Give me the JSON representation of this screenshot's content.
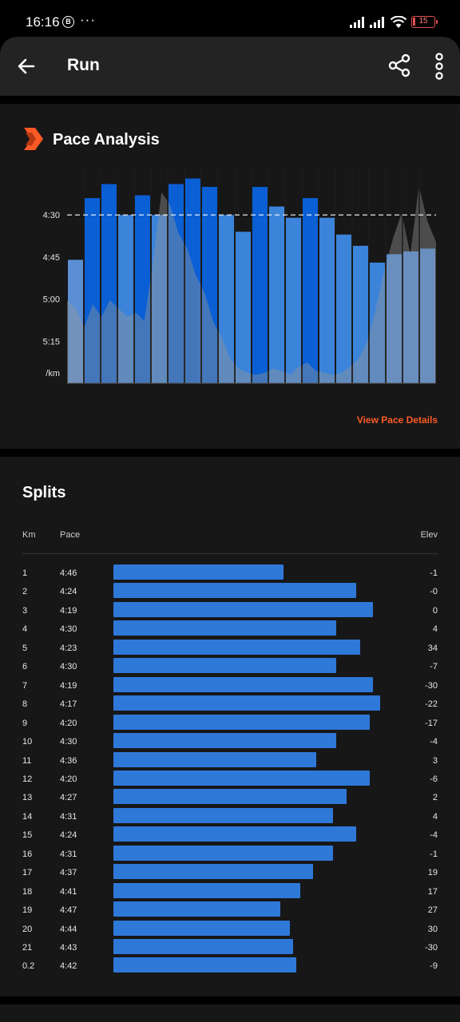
{
  "status": {
    "time": "16:16",
    "badge": "B",
    "dots": "···",
    "battery": "15"
  },
  "appbar": {
    "title": "Run",
    "back_icon": "arrow-left-icon",
    "share_icon": "share-icon",
    "more_icon": "more-vertical-icon"
  },
  "pace": {
    "title": "Pace Analysis",
    "icon": "chevron-badge-icon",
    "link": "View Pace Details",
    "chart_data": {
      "type": "bar",
      "ylabel": "/km",
      "y_ticks": [
        "4:30",
        "4:45",
        "5:00",
        "5:15"
      ],
      "y_tick_seconds": [
        270,
        285,
        300,
        315
      ],
      "ylim_seconds": [
        330,
        256
      ],
      "reference_line_seconds": 270,
      "categories": [
        "1",
        "2",
        "3",
        "4",
        "5",
        "6",
        "7",
        "8",
        "9",
        "10",
        "11",
        "12",
        "13",
        "14",
        "15",
        "16",
        "17",
        "18",
        "19",
        "20",
        "21",
        "0.2"
      ],
      "values_seconds": [
        286,
        264,
        259,
        270,
        263,
        270,
        259,
        257,
        260,
        270,
        276,
        260,
        267,
        271,
        264,
        271,
        277,
        281,
        287,
        284,
        283,
        282
      ],
      "bar_colors": [
        "#5a8fd6",
        "#0a5fd4",
        "#0a5fd4",
        "#3b84da",
        "#0a5fd4",
        "#3b84da",
        "#0a5fd4",
        "#0a5fd4",
        "#0a5fd4",
        "#3b84da",
        "#3b84da",
        "#0a5fd4",
        "#3b84da",
        "#3b84da",
        "#0a5fd4",
        "#3b84da",
        "#3b84da",
        "#3b84da",
        "#3b84da",
        "#4a8adb",
        "#4a8adb",
        "#4a8adb"
      ],
      "elevation_overlay": [
        0.4,
        0.36,
        0.27,
        0.38,
        0.32,
        0.4,
        0.36,
        0.32,
        0.34,
        0.3,
        0.58,
        0.92,
        0.86,
        0.72,
        0.65,
        0.52,
        0.44,
        0.3,
        0.22,
        0.12,
        0.07,
        0.05,
        0.04,
        0.05,
        0.07,
        0.06,
        0.04,
        0.08,
        0.1,
        0.06,
        0.05,
        0.04,
        0.05,
        0.08,
        0.12,
        0.2,
        0.36,
        0.55,
        0.7,
        0.82,
        0.62,
        0.95,
        0.78,
        0.68
      ]
    }
  },
  "splits": {
    "title": "Splits",
    "headers": {
      "km": "Km",
      "pace": "Pace",
      "elev": "Elev"
    },
    "rows": [
      {
        "km": "1",
        "pace": "4:46",
        "elev": "-1",
        "value": 286
      },
      {
        "km": "2",
        "pace": "4:24",
        "elev": "-0",
        "value": 264
      },
      {
        "km": "3",
        "pace": "4:19",
        "elev": "0",
        "value": 259
      },
      {
        "km": "4",
        "pace": "4:30",
        "elev": "4",
        "value": 270
      },
      {
        "km": "5",
        "pace": "4:23",
        "elev": "34",
        "value": 263
      },
      {
        "km": "6",
        "pace": "4:30",
        "elev": "-7",
        "value": 270
      },
      {
        "km": "7",
        "pace": "4:19",
        "elev": "-30",
        "value": 259
      },
      {
        "km": "8",
        "pace": "4:17",
        "elev": "-22",
        "value": 257
      },
      {
        "km": "9",
        "pace": "4:20",
        "elev": "-17",
        "value": 260
      },
      {
        "km": "10",
        "pace": "4:30",
        "elev": "-4",
        "value": 270
      },
      {
        "km": "11",
        "pace": "4:36",
        "elev": "3",
        "value": 276
      },
      {
        "km": "12",
        "pace": "4:20",
        "elev": "-6",
        "value": 260
      },
      {
        "km": "13",
        "pace": "4:27",
        "elev": "2",
        "value": 267
      },
      {
        "km": "14",
        "pace": "4:31",
        "elev": "4",
        "value": 271
      },
      {
        "km": "15",
        "pace": "4:24",
        "elev": "-4",
        "value": 264
      },
      {
        "km": "16",
        "pace": "4:31",
        "elev": "-1",
        "value": 271
      },
      {
        "km": "17",
        "pace": "4:37",
        "elev": "19",
        "value": 277
      },
      {
        "km": "18",
        "pace": "4:41",
        "elev": "17",
        "value": 281
      },
      {
        "km": "19",
        "pace": "4:47",
        "elev": "27",
        "value": 287
      },
      {
        "km": "20",
        "pace": "4:44",
        "elev": "30",
        "value": 284
      },
      {
        "km": "21",
        "pace": "4:43",
        "elev": "-30",
        "value": 283
      },
      {
        "km": "0.2",
        "pace": "4:42",
        "elev": "-9",
        "value": 282
      }
    ]
  }
}
